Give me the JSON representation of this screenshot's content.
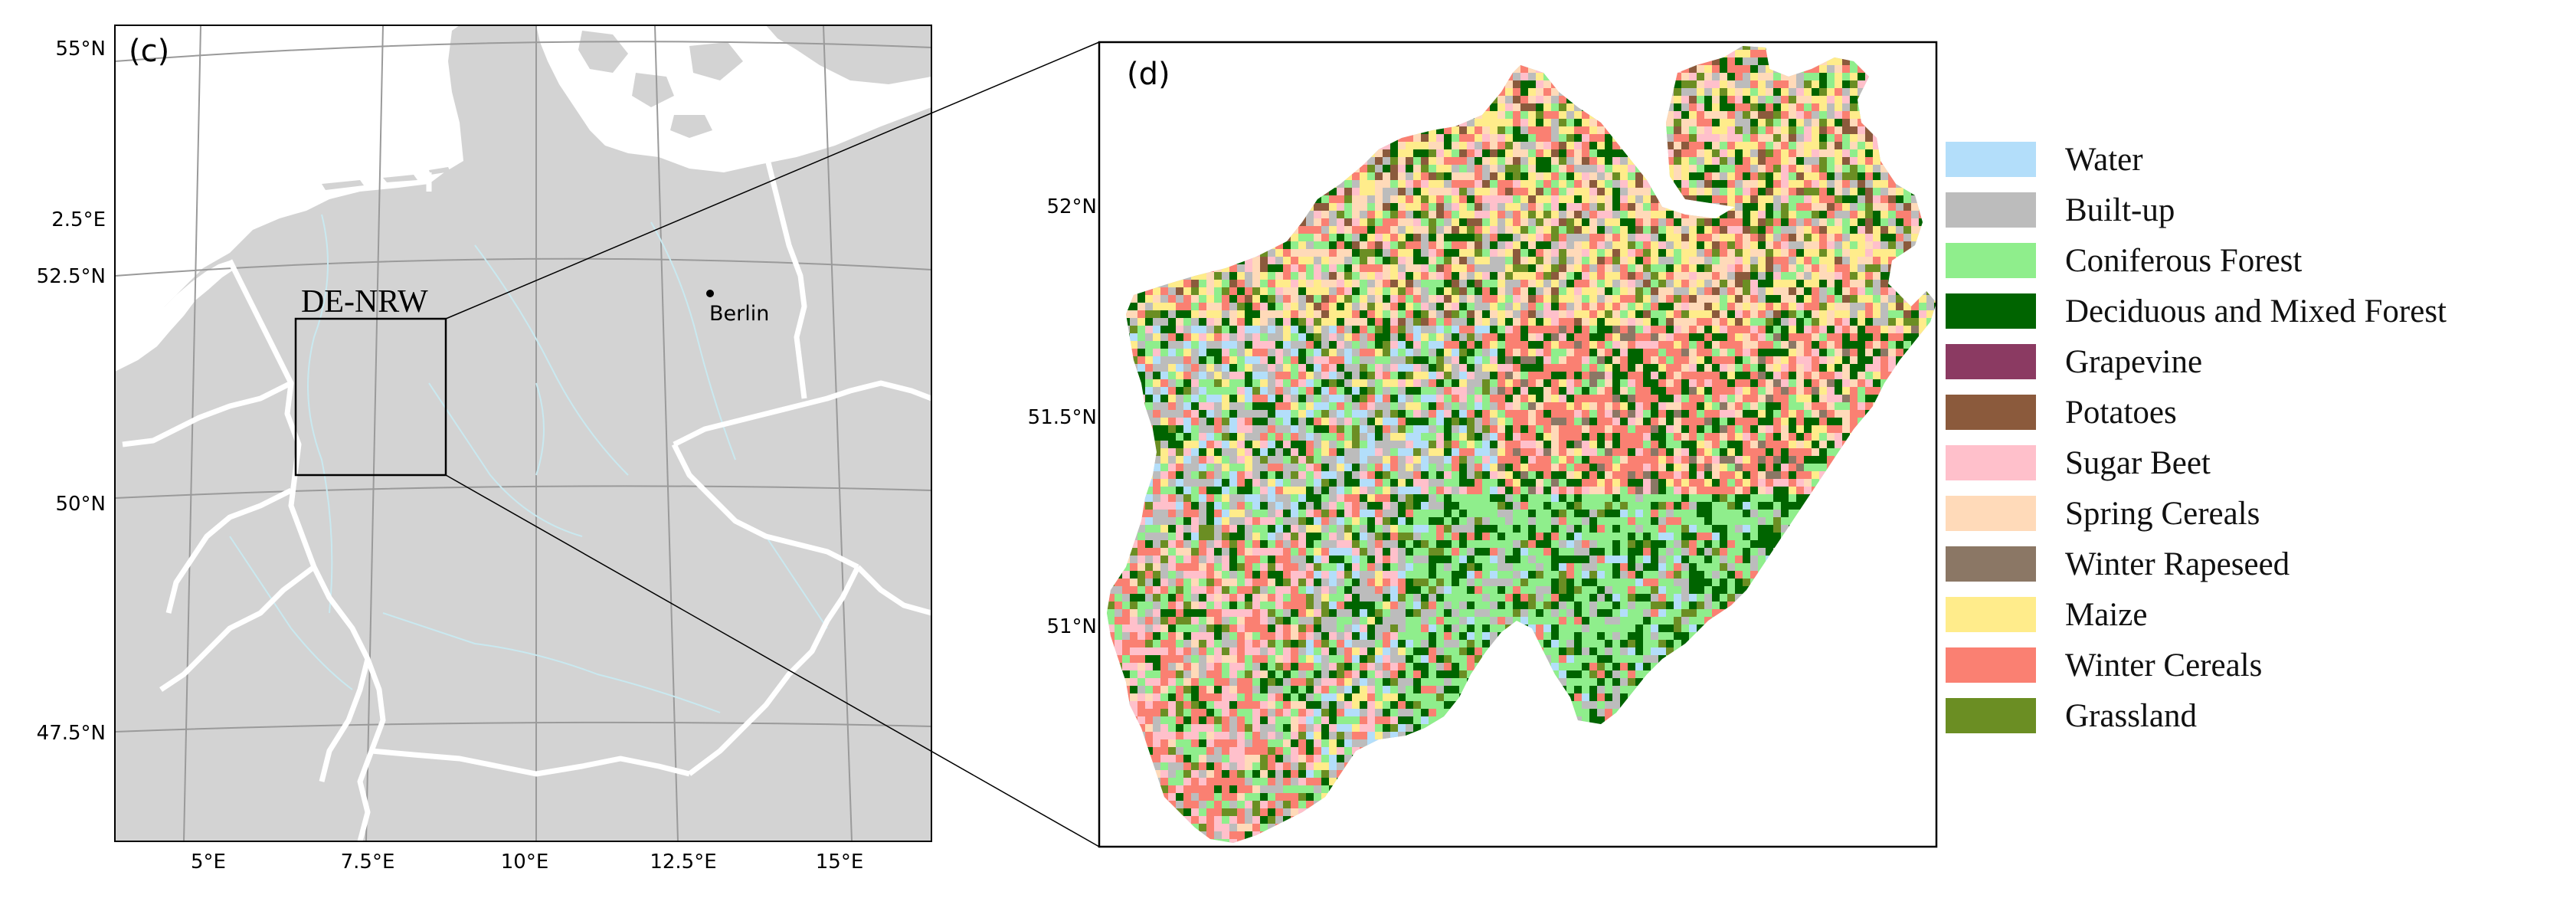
{
  "panel_c": {
    "letter": "(c)",
    "region_box_label": "DE-NRW",
    "city_label": "Berlin",
    "lat_labels": [
      "55°N",
      "2.5°E",
      "52.5°N",
      "50°N",
      "47.5°N"
    ],
    "lon_labels": [
      "5°E",
      "7.5°E",
      "10°E",
      "12.5°E",
      "15°E"
    ],
    "land_color": "#d3d3d3",
    "border_color": "#ffffff"
  },
  "panel_d": {
    "letter": "(d)",
    "lat_labels": [
      "52°N",
      "51.5°N",
      "51°N"
    ]
  },
  "legend": [
    {
      "label": "Water",
      "color": "#b3defa"
    },
    {
      "label": "Built-up",
      "color": "#bcbcbc"
    },
    {
      "label": "Coniferous Forest",
      "color": "#8fee8c"
    },
    {
      "label": "Deciduous and Mixed Forest",
      "color": "#006400"
    },
    {
      "label": "Grapevine",
      "color": "#8b3a62"
    },
    {
      "label": "Potatoes",
      "color": "#8b5a3c"
    },
    {
      "label": "Sugar Beet",
      "color": "#ffc0cb"
    },
    {
      "label": "Spring Cereals",
      "color": "#ffdab9"
    },
    {
      "label": "Winter Rapeseed",
      "color": "#8b7765"
    },
    {
      "label": "Maize",
      "color": "#ffec8b"
    },
    {
      "label": "Winter Cereals",
      "color": "#fa8072"
    },
    {
      "label": "Grassland",
      "color": "#6b8e23"
    }
  ]
}
